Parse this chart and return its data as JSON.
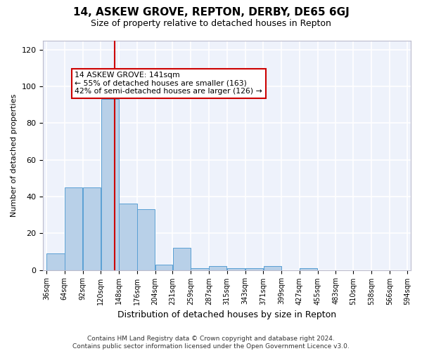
{
  "title": "14, ASKEW GROVE, REPTON, DERBY, DE65 6GJ",
  "subtitle": "Size of property relative to detached houses in Repton",
  "xlabel": "Distribution of detached houses by size in Repton",
  "ylabel": "Number of detached properties",
  "bar_color": "#b8d0e8",
  "bar_edge_color": "#5a9fd4",
  "axes_facecolor": "#eef2fb",
  "fig_facecolor": "#ffffff",
  "grid_color": "#ffffff",
  "vline_x": 141,
  "vline_color": "#cc0000",
  "annotation_text": "14 ASKEW GROVE: 141sqm\n← 55% of detached houses are smaller (163)\n42% of semi-detached houses are larger (126) →",
  "annotation_box_color": "#ffffff",
  "annotation_box_edge": "#cc0000",
  "footer": "Contains HM Land Registry data © Crown copyright and database right 2024.\nContains public sector information licensed under the Open Government Licence v3.0.",
  "bin_edges": [
    36,
    64,
    92,
    120,
    148,
    176,
    204,
    231,
    259,
    287,
    315,
    343,
    371,
    399,
    427,
    455,
    483,
    510,
    538,
    566,
    594
  ],
  "bin_labels": [
    "36sqm",
    "64sqm",
    "92sqm",
    "120sqm",
    "148sqm",
    "176sqm",
    "204sqm",
    "231sqm",
    "259sqm",
    "287sqm",
    "315sqm",
    "343sqm",
    "371sqm",
    "399sqm",
    "427sqm",
    "455sqm",
    "483sqm",
    "510sqm",
    "538sqm",
    "566sqm",
    "594sqm"
  ],
  "counts": [
    9,
    45,
    45,
    93,
    36,
    33,
    3,
    12,
    1,
    2,
    1,
    1,
    2,
    0,
    1,
    0,
    0,
    0,
    0,
    0
  ],
  "ylim": [
    0,
    125
  ],
  "yticks": [
    0,
    20,
    40,
    60,
    80,
    100,
    120
  ]
}
